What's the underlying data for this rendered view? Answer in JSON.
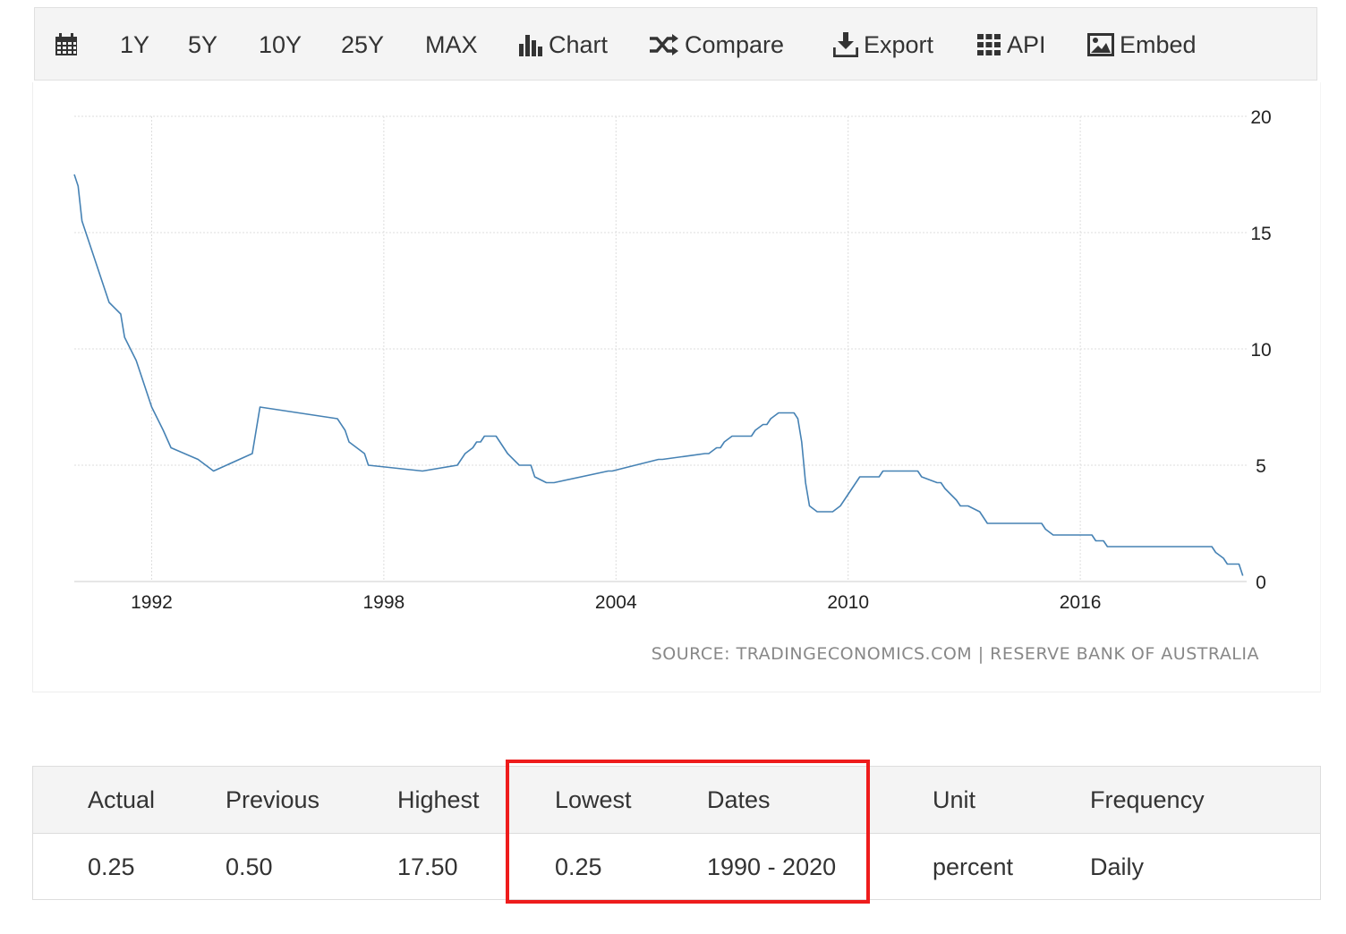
{
  "toolbar": {
    "items": [
      {
        "label": "",
        "icon": "calendar-icon"
      },
      {
        "label": "1Y"
      },
      {
        "label": "5Y"
      },
      {
        "label": "10Y"
      },
      {
        "label": "25Y"
      },
      {
        "label": "MAX"
      },
      {
        "label": "Chart",
        "icon": "bar-chart-icon"
      },
      {
        "label": "Compare",
        "icon": "shuffle-icon"
      },
      {
        "label": "Export",
        "icon": "download-icon"
      },
      {
        "label": "API",
        "icon": "grid-icon"
      },
      {
        "label": "Embed",
        "icon": "image-icon"
      }
    ]
  },
  "source_text": "SOURCE: TRADINGECONOMICS.COM | RESERVE BANK OF AUSTRALIA",
  "chart_data": {
    "type": "line",
    "title": "",
    "xlabel": "",
    "ylabel": "",
    "xlim": [
      1990.0,
      2020.3
    ],
    "ylim": [
      0,
      20
    ],
    "x_ticks": [
      1992,
      1998,
      2004,
      2010,
      2016
    ],
    "x_tick_labels": [
      "1992",
      "1998",
      "2004",
      "2010",
      "2016"
    ],
    "y_ticks": [
      0,
      5,
      10,
      15,
      20
    ],
    "y_tick_labels": [
      "0",
      "5",
      "10",
      "15",
      "20"
    ],
    "y_axis_position": "right",
    "grid": true,
    "line_color": "#4682b4",
    "series": [
      {
        "x": [
          1990.0,
          1990.1,
          1990.2,
          1990.5,
          1990.9,
          1991.2,
          1991.3,
          1991.6,
          1992.0,
          1992.3,
          1992.5,
          1993.2,
          1993.6,
          1994.6,
          1994.8,
          1996.8,
          1997.0,
          1997.1,
          1997.5,
          1997.6,
          1999.0,
          1999.9,
          2000.1,
          2000.3,
          2000.4,
          2000.5,
          2000.6,
          2000.9,
          2001.0,
          2001.1,
          2001.2,
          2001.5,
          2001.6,
          2001.8,
          2001.9,
          2002.2,
          2002.4,
          2003.8,
          2003.9,
          2005.1,
          2005.2,
          2006.3,
          2006.4,
          2006.6,
          2006.7,
          2006.8,
          2007.0,
          2007.5,
          2007.6,
          2007.8,
          2007.9,
          2008.0,
          2008.2,
          2008.6,
          2008.7,
          2008.8,
          2008.9,
          2009.0,
          2009.2,
          2009.6,
          2009.8,
          2010.0,
          2010.3,
          2010.8,
          2010.9,
          2011.8,
          2011.9,
          2012.3,
          2012.4,
          2012.5,
          2012.8,
          2012.9,
          2013.1,
          2013.4,
          2013.5,
          2013.6,
          2014.0,
          2015.0,
          2015.1,
          2015.3,
          2015.4,
          2016.3,
          2016.4,
          2016.6,
          2016.7,
          2019.4,
          2019.5,
          2019.7,
          2019.8,
          2020.1,
          2020.2
        ],
        "y": [
          17.5,
          17.0,
          15.5,
          14.0,
          12.0,
          11.5,
          10.5,
          9.5,
          7.5,
          6.5,
          5.75,
          5.25,
          4.75,
          5.5,
          7.5,
          7.0,
          6.5,
          6.0,
          5.5,
          5.0,
          4.75,
          5.0,
          5.5,
          5.75,
          6.0,
          6.0,
          6.25,
          6.25,
          6.0,
          5.75,
          5.5,
          5.0,
          5.0,
          5.0,
          4.5,
          4.25,
          4.25,
          4.75,
          4.75,
          5.25,
          5.25,
          5.5,
          5.5,
          5.75,
          5.75,
          6.0,
          6.25,
          6.25,
          6.5,
          6.75,
          6.75,
          7.0,
          7.25,
          7.25,
          7.0,
          6.0,
          4.25,
          3.25,
          3.0,
          3.0,
          3.25,
          3.75,
          4.5,
          4.5,
          4.75,
          4.75,
          4.5,
          4.25,
          4.25,
          4.0,
          3.5,
          3.25,
          3.25,
          3.0,
          2.75,
          2.5,
          2.5,
          2.5,
          2.25,
          2.0,
          2.0,
          2.0,
          1.75,
          1.75,
          1.5,
          1.5,
          1.25,
          1.0,
          0.75,
          0.75,
          0.25
        ]
      }
    ]
  },
  "stats": {
    "headers": [
      "Actual",
      "Previous",
      "Highest",
      "Lowest",
      "Dates",
      "Unit",
      "Frequency"
    ],
    "values": [
      "0.25",
      "0.50",
      "17.50",
      "0.25",
      "1990 - 2020",
      "percent",
      "Daily"
    ],
    "highlight_color": "#ee1c1c"
  }
}
